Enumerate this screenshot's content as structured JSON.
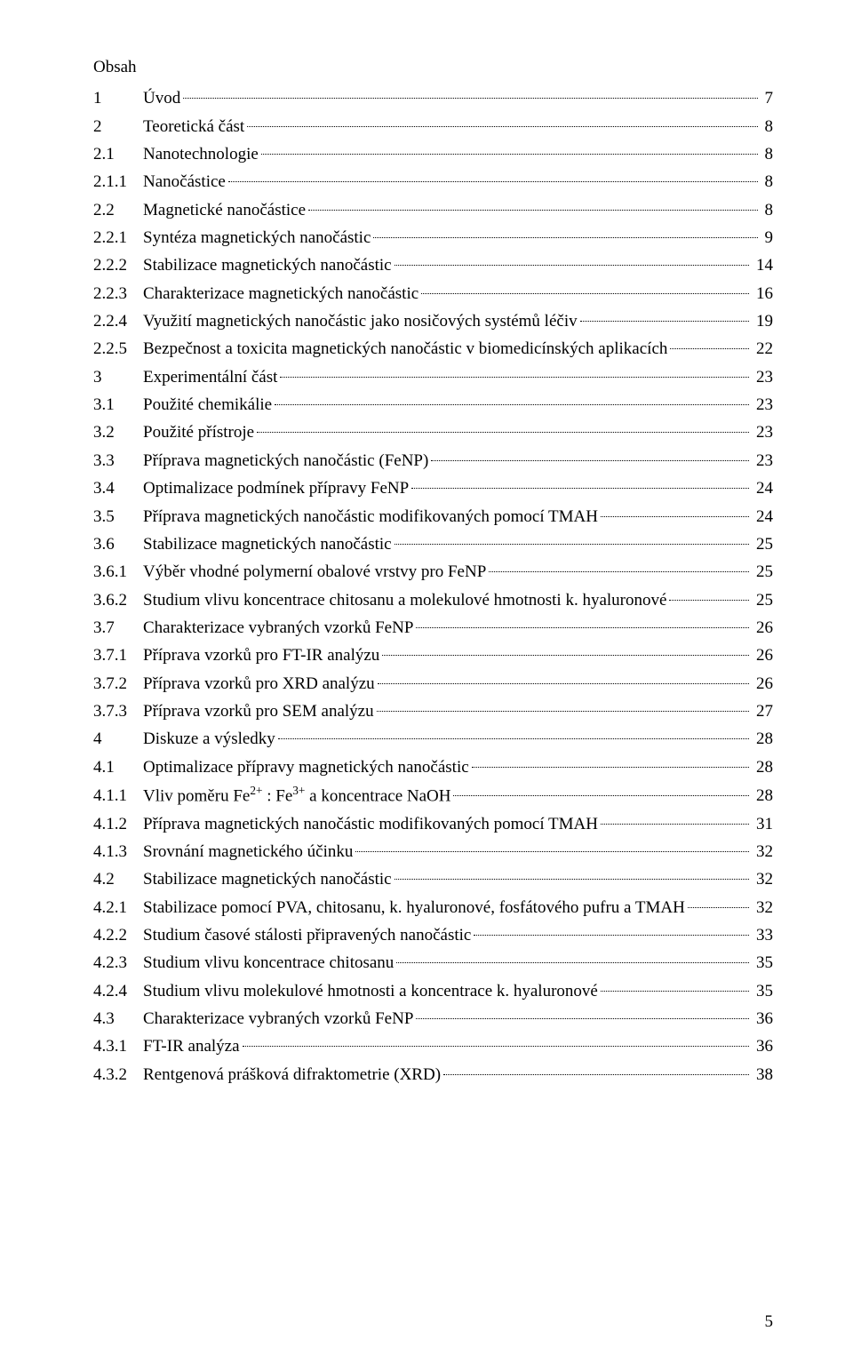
{
  "title": "Obsah",
  "page_number": "5",
  "entries": [
    {
      "num": "1",
      "label": "Úvod",
      "page": "7"
    },
    {
      "num": "2",
      "label": "Teoretická část",
      "page": "8"
    },
    {
      "num": "2.1",
      "label": "Nanotechnologie",
      "page": "8"
    },
    {
      "num": "2.1.1",
      "label": "Nanočástice",
      "page": "8"
    },
    {
      "num": "2.2",
      "label": "Magnetické nanočástice",
      "page": "8"
    },
    {
      "num": "2.2.1",
      "label": "Syntéza magnetických nanočástic",
      "page": "9"
    },
    {
      "num": "2.2.2",
      "label": "Stabilizace magnetických nanočástic",
      "page": "14"
    },
    {
      "num": "2.2.3",
      "label": "Charakterizace magnetických nanočástic",
      "page": "16"
    },
    {
      "num": "2.2.4",
      "label": "Využití magnetických nanočástic jako nosičových systémů léčiv",
      "page": "19"
    },
    {
      "num": "2.2.5",
      "label": "Bezpečnost a toxicita magnetických nanočástic v biomedicínských aplikacích",
      "page": "22"
    },
    {
      "num": "3",
      "label": "Experimentální část",
      "page": "23"
    },
    {
      "num": "3.1",
      "label": "Použité chemikálie",
      "page": "23"
    },
    {
      "num": "3.2",
      "label": "Použité přístroje",
      "page": "23"
    },
    {
      "num": "3.3",
      "label": "Příprava magnetických nanočástic (FeNP)",
      "page": "23"
    },
    {
      "num": "3.4",
      "label": "Optimalizace podmínek přípravy FeNP",
      "page": "24"
    },
    {
      "num": "3.5",
      "label": "Příprava magnetických nanočástic modifikovaných pomocí TMAH",
      "page": "24"
    },
    {
      "num": "3.6",
      "label": "Stabilizace magnetických nanočástic",
      "page": "25"
    },
    {
      "num": "3.6.1",
      "label": "Výběr vhodné polymerní obalové vrstvy pro FeNP",
      "page": "25"
    },
    {
      "num": "3.6.2",
      "label": "Studium vlivu koncentrace chitosanu a molekulové hmotnosti k. hyaluronové",
      "page": "25"
    },
    {
      "num": "3.7",
      "label": "Charakterizace vybraných vzorků FeNP",
      "page": "26"
    },
    {
      "num": "3.7.1",
      "label": "Příprava vzorků pro FT-IR analýzu",
      "page": "26"
    },
    {
      "num": "3.7.2",
      "label": "Příprava vzorků pro XRD analýzu",
      "page": "26"
    },
    {
      "num": "3.7.3",
      "label": "Příprava vzorků pro SEM analýzu",
      "page": "27"
    },
    {
      "num": "4",
      "label": "Diskuze a výsledky",
      "page": "28"
    },
    {
      "num": "4.1",
      "label": "Optimalizace přípravy magnetických nanočástic",
      "page": "28"
    },
    {
      "num": "4.1.1",
      "label": "Vliv poměru Fe²⁺ : Fe³⁺ a koncentrace NaOH",
      "page": "28",
      "label_html": "Vliv poměru Fe<sup>2+</sup> : Fe<sup>3+</sup> a koncentrace NaOH"
    },
    {
      "num": "4.1.2",
      "label": "Příprava magnetických nanočástic modifikovaných pomocí TMAH",
      "page": "31"
    },
    {
      "num": "4.1.3",
      "label": "Srovnání magnetického účinku",
      "page": "32"
    },
    {
      "num": "4.2",
      "label": "Stabilizace magnetických nanočástic",
      "page": "32"
    },
    {
      "num": "4.2.1",
      "label": "Stabilizace pomocí PVA, chitosanu, k. hyaluronové, fosfátového pufru a TMAH",
      "page": "32"
    },
    {
      "num": "4.2.2",
      "label": "Studium časové stálosti připravených nanočástic",
      "page": "33"
    },
    {
      "num": "4.2.3",
      "label": "Studium vlivu koncentrace chitosanu",
      "page": "35"
    },
    {
      "num": "4.2.4",
      "label": "Studium vlivu molekulové hmotnosti a koncentrace k. hyaluronové",
      "page": "35"
    },
    {
      "num": "4.3",
      "label": "Charakterizace vybraných vzorků FeNP",
      "page": "36"
    },
    {
      "num": "4.3.1",
      "label": "FT-IR analýza",
      "page": "36"
    },
    {
      "num": "4.3.2",
      "label": "Rentgenová prášková difraktometrie (XRD)",
      "page": "38"
    }
  ],
  "style": {
    "font_family": "Times New Roman",
    "font_size_pt": 14,
    "text_color": "#000000",
    "background_color": "#ffffff",
    "leader_style": "dotted",
    "number_col_width_ch": 6
  }
}
